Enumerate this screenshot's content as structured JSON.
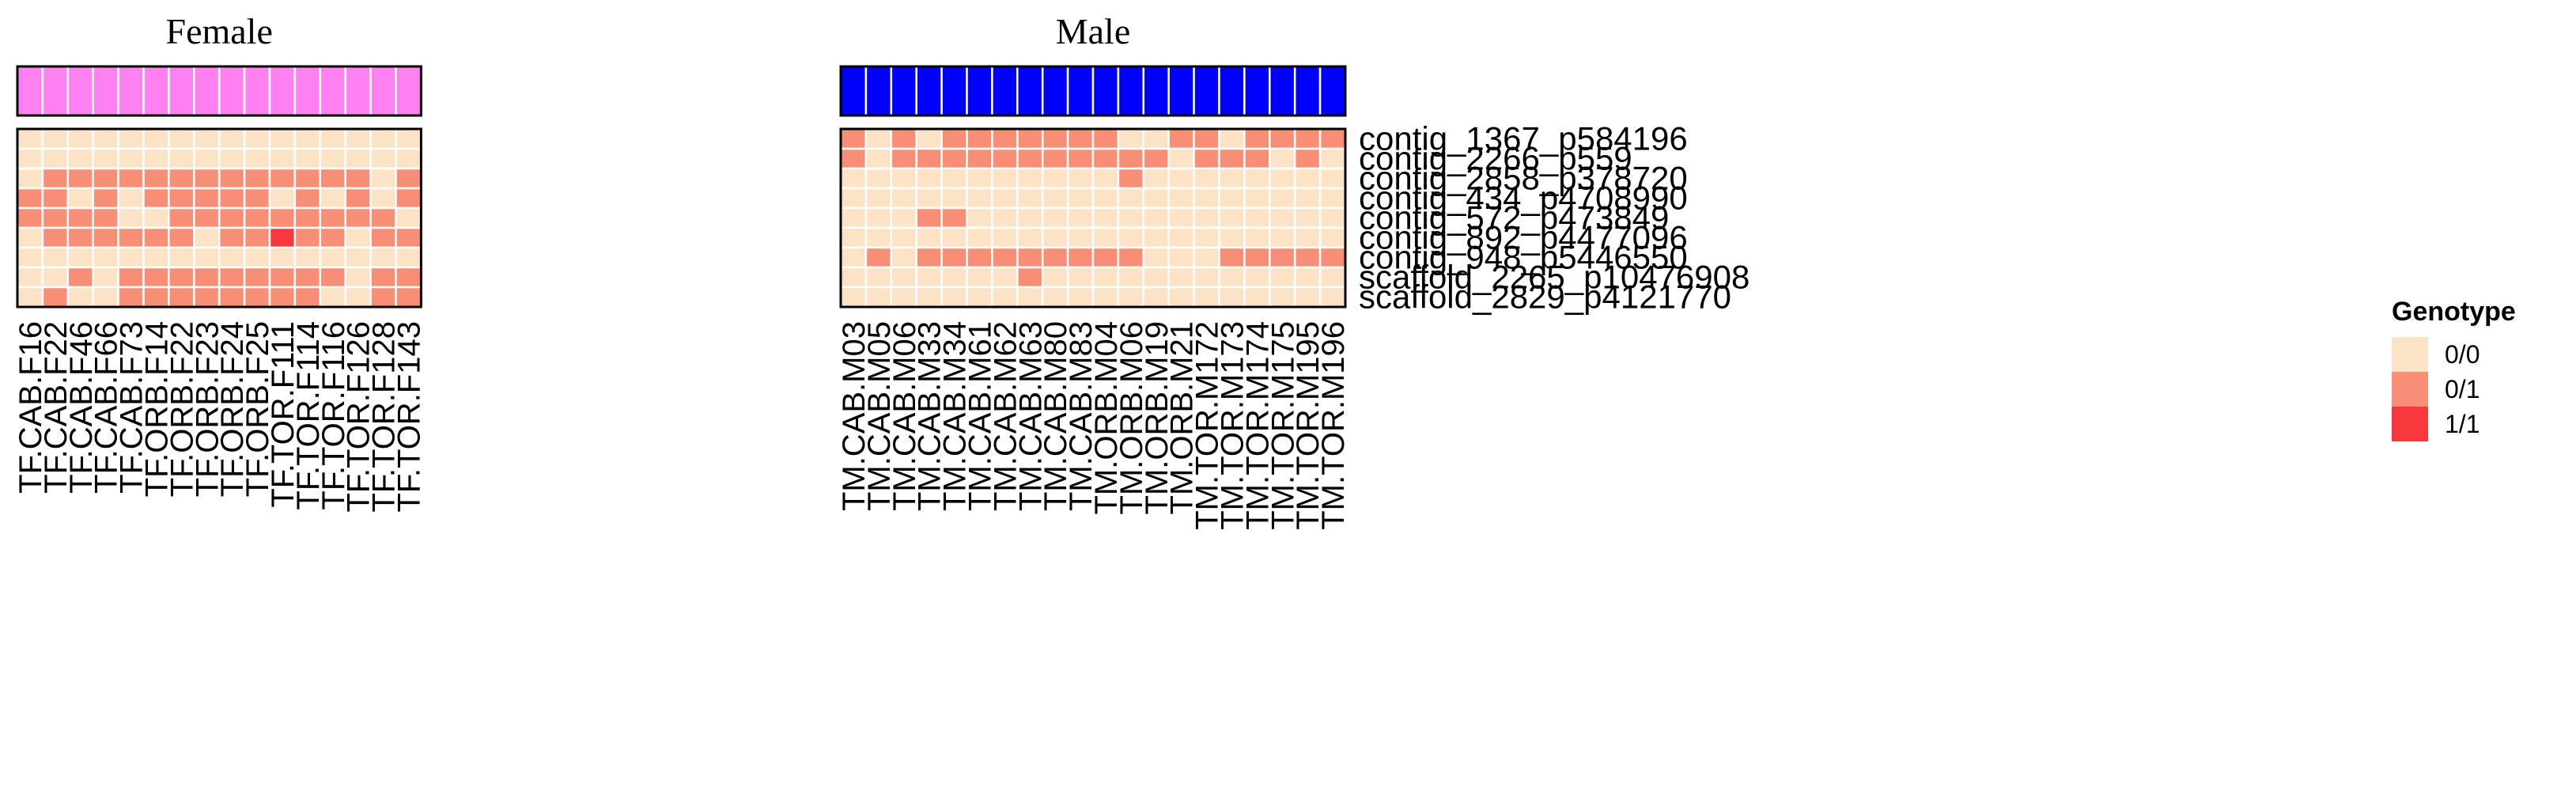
{
  "chart_data": {
    "type": "heatmap",
    "groups": [
      {
        "name": "Female",
        "color": "#FF80F0",
        "count": 16
      },
      {
        "name": "Male",
        "color": "#0000FF",
        "count": 20
      }
    ],
    "columns": [
      "TF.CAB.F16",
      "TF.CAB.F22",
      "TF.CAB.F46",
      "TF.CAB.F66",
      "TF.CAB.F73",
      "TF.ORB.F14",
      "TF.ORB.F22",
      "TF.ORB.F23",
      "TF.ORB.F24",
      "TF.ORB.F25",
      "TF.TOR.F111",
      "TF.TOR.F114",
      "TF.TOR.F116",
      "TF.TOR.F126",
      "TF.TOR.F128",
      "TF.TOR.F143",
      "TM.CAB.M03",
      "TM.CAB.M05",
      "TM.CAB.M06",
      "TM.CAB.M33",
      "TM.CAB.M34",
      "TM.CAB.M61",
      "TM.CAB.M62",
      "TM.CAB.M63",
      "TM.CAB.M80",
      "TM.CAB.M83",
      "TM.ORB.M04",
      "TM.ORB.M06",
      "TM.ORB.M19",
      "TM.ORB.M21",
      "TM.TOR.M172",
      "TM.TOR.M173",
      "TM.TOR.M174",
      "TM.TOR.M175",
      "TM.TOR.M195",
      "TM.TOR.M196"
    ],
    "rows": [
      "contig_1367_p584196",
      "contig_2266_p559",
      "contig_2858_p378720",
      "contig_434_p4708990",
      "contig_572_p473849",
      "contig_892_p4477096",
      "contig_948_p5446550",
      "scaffold_2265_p10476908",
      "scaffold_2829_p4121770"
    ],
    "values": [
      [
        0,
        0,
        0,
        0,
        0,
        0,
        0,
        0,
        0,
        0,
        0,
        0,
        0,
        0,
        0,
        0,
        1,
        0,
        1,
        0,
        1,
        1,
        1,
        1,
        1,
        1,
        1,
        0,
        0,
        1,
        1,
        0,
        1,
        1,
        1,
        1
      ],
      [
        0,
        0,
        0,
        0,
        0,
        0,
        0,
        0,
        0,
        0,
        0,
        0,
        0,
        0,
        0,
        0,
        1,
        0,
        1,
        1,
        1,
        1,
        1,
        1,
        1,
        1,
        1,
        1,
        1,
        0,
        1,
        1,
        1,
        0,
        1,
        0
      ],
      [
        0,
        1,
        1,
        1,
        1,
        1,
        1,
        1,
        1,
        1,
        1,
        1,
        1,
        1,
        0,
        1,
        0,
        0,
        0,
        0,
        0,
        0,
        0,
        0,
        0,
        0,
        0,
        1,
        0,
        0,
        0,
        0,
        0,
        0,
        0,
        0
      ],
      [
        1,
        1,
        0,
        1,
        0,
        1,
        1,
        1,
        1,
        1,
        0,
        1,
        0,
        1,
        0,
        1,
        0,
        0,
        0,
        0,
        0,
        0,
        0,
        0,
        0,
        0,
        0,
        0,
        0,
        0,
        0,
        0,
        0,
        0,
        0,
        0
      ],
      [
        1,
        1,
        1,
        1,
        0,
        0,
        1,
        1,
        1,
        1,
        1,
        1,
        1,
        1,
        1,
        0,
        0,
        0,
        0,
        1,
        1,
        0,
        0,
        0,
        0,
        0,
        0,
        0,
        0,
        0,
        0,
        0,
        0,
        0,
        0,
        0
      ],
      [
        0,
        1,
        1,
        1,
        1,
        1,
        1,
        0,
        1,
        1,
        2,
        1,
        1,
        0,
        1,
        1,
        0,
        0,
        0,
        0,
        0,
        0,
        0,
        0,
        0,
        0,
        0,
        0,
        0,
        0,
        0,
        0,
        0,
        0,
        0,
        0
      ],
      [
        0,
        0,
        0,
        0,
        0,
        0,
        0,
        0,
        0,
        0,
        0,
        0,
        0,
        0,
        0,
        0,
        0,
        1,
        0,
        1,
        1,
        1,
        1,
        1,
        1,
        1,
        1,
        1,
        0,
        0,
        0,
        1,
        1,
        1,
        1,
        1
      ],
      [
        0,
        0,
        1,
        0,
        1,
        1,
        1,
        1,
        1,
        1,
        1,
        1,
        1,
        0,
        1,
        1,
        0,
        0,
        0,
        0,
        0,
        0,
        0,
        1,
        0,
        0,
        0,
        0,
        0,
        0,
        0,
        0,
        0,
        0,
        0,
        0
      ],
      [
        0,
        1,
        0,
        0,
        1,
        1,
        1,
        1,
        1,
        1,
        1,
        1,
        0,
        0,
        1,
        1,
        0,
        0,
        0,
        0,
        0,
        0,
        0,
        0,
        0,
        0,
        0,
        0,
        0,
        0,
        0,
        0,
        0,
        0,
        0,
        0
      ]
    ],
    "legend": {
      "title": "Genotype",
      "position": "right",
      "entries": [
        {
          "label": "0/0",
          "color": "#FDE3C6"
        },
        {
          "label": "0/1",
          "color": "#F88E76"
        },
        {
          "label": "1/1",
          "color": "#F8383C"
        }
      ]
    }
  }
}
